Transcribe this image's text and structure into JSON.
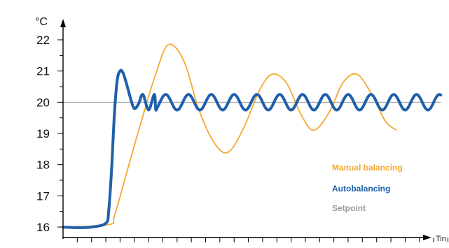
{
  "chart_data": {
    "type": "line",
    "title": "",
    "ylabel": "°C",
    "xlabel": "Tin",
    "ylim": [
      15.8,
      22.7
    ],
    "xlim": [
      0,
      27
    ],
    "yticks": [
      "16",
      "17",
      "18",
      "19",
      "20",
      "21",
      "22"
    ],
    "ytick_values": [
      16,
      17,
      18,
      19,
      20,
      21,
      22
    ],
    "minor_y_step": 0.5,
    "x_tick_count": 27,
    "grid": false,
    "legend_position": "lower-right",
    "colors": {
      "manual": "#f5a830",
      "auto": "#1f5faa",
      "setpoint": "#9a9a9a",
      "axis": "#000000"
    },
    "series": [
      {
        "name": "Manual balancing",
        "x": [
          0,
          3.2,
          3.6,
          4.5,
          5.5,
          6.5,
          7.4,
          8.5,
          9.5,
          10.6,
          11.6,
          12.7,
          13.8,
          14.7,
          15.7,
          16.7,
          17.6,
          18.7,
          19.6,
          20.6,
          21.6,
          22.6,
          23.4
        ],
        "y": [
          16.0,
          16.08,
          16.35,
          17.8,
          19.4,
          20.9,
          21.85,
          21.3,
          19.8,
          18.7,
          18.4,
          19.2,
          20.4,
          20.9,
          20.6,
          19.6,
          19.1,
          19.7,
          20.6,
          20.9,
          20.3,
          19.4,
          19.1
        ]
      },
      {
        "name": "Autobalancing",
        "x": [
          0,
          1,
          2,
          3,
          3.2,
          3.4,
          3.6,
          3.8,
          4.0,
          4.2,
          4.45,
          4.75,
          5.0,
          5.3,
          5.6,
          6.0,
          6.4
        ],
        "y": [
          16.0,
          15.98,
          16.0,
          16.12,
          16.5,
          17.8,
          19.6,
          20.7,
          21.0,
          20.95,
          20.6,
          20.1,
          19.8,
          19.95,
          20.25,
          19.75,
          20.25
        ],
        "oscillation": {
          "center": 20.0,
          "amplitude": 0.25,
          "period": 1.6,
          "until": 26.5
        }
      },
      {
        "name": "Setpoint",
        "x": [
          0,
          26.5
        ],
        "y": [
          20,
          20
        ]
      }
    ]
  }
}
